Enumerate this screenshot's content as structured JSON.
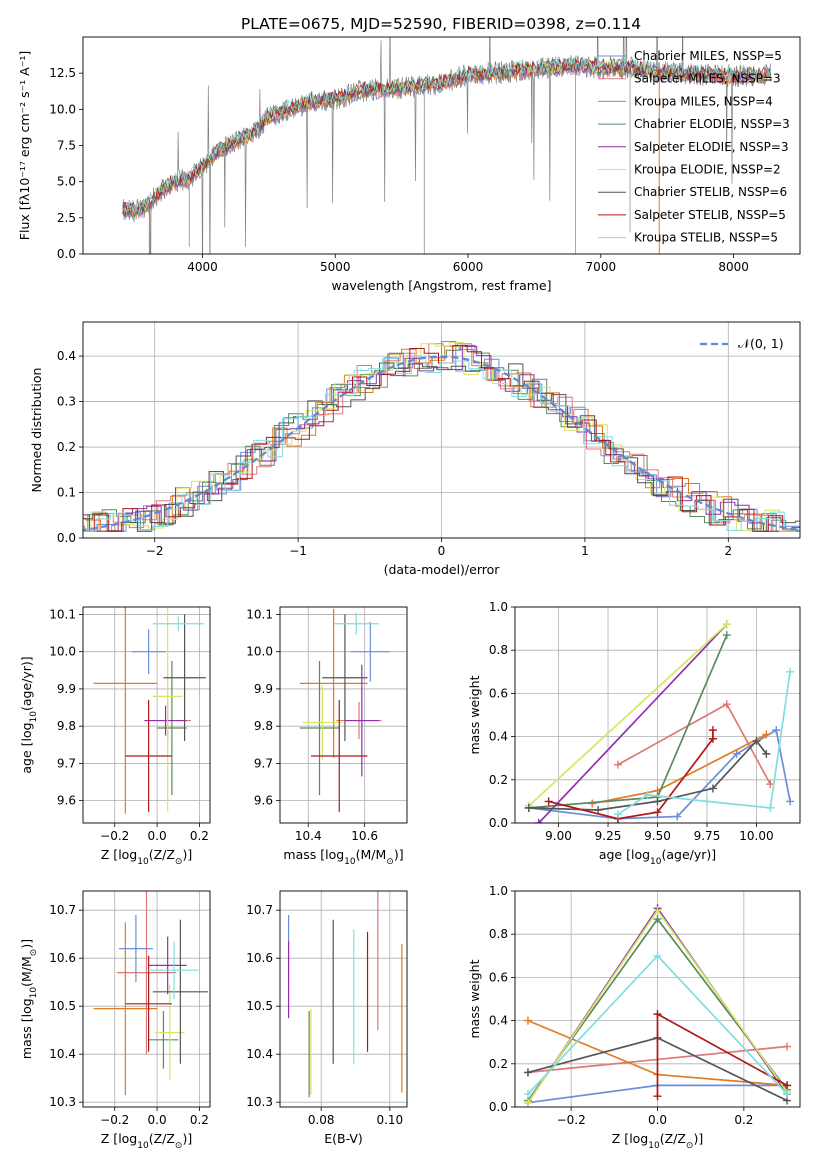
{
  "figure": {
    "title": "PLATE=0675, MJD=52590, FIBERID=0398, z=0.114"
  },
  "colors": {
    "Chabrier MILES": "#6a8fd8",
    "Salpeter MILES": "#e07878",
    "Kroupa MILES": "#e07b20",
    "Chabrier ELODIE": "#5a8a62",
    "Salpeter ELODIE": "#9030b0",
    "Kroupa ELODIE": "#d4e660",
    "Chabrier STELIB": "#555555",
    "Salpeter STELIB": "#b01818",
    "Kroupa STELIB": "#80dede"
  },
  "chart_data": [
    {
      "id": "spectrum",
      "type": "line",
      "title": "PLATE=0675, MJD=52590, FIBERID=0398, z=0.114",
      "xlabel": "wavelength [Angstrom, rest frame]",
      "ylabel": "Flux [fλ10⁻¹⁷ erg cm⁻² s⁻¹ A⁻¹]",
      "xlim": [
        3100,
        8500
      ],
      "ylim": [
        0,
        15
      ],
      "xticks": [
        4000,
        5000,
        6000,
        7000,
        8000
      ],
      "yticks": [
        0.0,
        2.5,
        5.0,
        7.5,
        10.0,
        12.5
      ],
      "legend_position": "right",
      "legend": [
        "Chabrier MILES, NSSP=5",
        "Salpeter MILES, NSSP=3",
        "Kroupa MILES, NSSP=4",
        "Chabrier ELODIE, NSSP=3",
        "Salpeter ELODIE, NSSP=3",
        "Kroupa ELODIE, NSSP=2",
        "Chabrier STELIB, NSSP=6",
        "Salpeter STELIB, NSSP=5",
        "Kroupa STELIB, NSSP=5"
      ],
      "data_x": [
        3400,
        3500,
        3600,
        3700,
        3800,
        3900,
        4000,
        4100,
        4200,
        4300,
        4400,
        4500,
        4600,
        4700,
        4800,
        4900,
        5000,
        5200,
        5400,
        5600,
        5800,
        6000,
        6200,
        6400,
        6600,
        6800,
        7000,
        7200,
        7400,
        7600,
        7800,
        8000,
        8200,
        8300
      ],
      "data_y": [
        3.0,
        3.0,
        3.5,
        4.5,
        5.0,
        5.2,
        6.0,
        7.0,
        7.5,
        8.0,
        8.5,
        9.5,
        9.8,
        10.2,
        10.5,
        10.6,
        10.7,
        11.3,
        11.4,
        11.6,
        11.8,
        12.4,
        12.5,
        12.7,
        12.8,
        13.0,
        12.9,
        12.9,
        12.6,
        12.5,
        12.4,
        12.3,
        12.3,
        12.5
      ]
    },
    {
      "id": "residuals",
      "type": "bar",
      "xlabel": "(data-model)/error",
      "ylabel": "Normed distribution",
      "xlim": [
        -2.5,
        2.5
      ],
      "ylim": [
        0,
        0.475
      ],
      "xticks": [
        -2,
        -1,
        0,
        1,
        2
      ],
      "yticks": [
        0.0,
        0.1,
        0.2,
        0.3,
        0.4
      ],
      "grid": true,
      "legend_position": "top-right",
      "legend": [
        "𝒩(0, 1)"
      ],
      "note": "histograms of 9 fits (step lines) with the standard normal pdf (dashed)"
    },
    {
      "id": "z_age",
      "type": "scatter",
      "xlabel": "Z [log10(Z/Z⊙)]",
      "ylabel": "age  [log10(age/yr)]",
      "xlim": [
        -0.35,
        0.25
      ],
      "ylim": [
        9.54,
        10.12
      ],
      "xticks": [
        -0.2,
        0.0,
        0.2
      ],
      "yticks": [
        9.6,
        9.7,
        9.8,
        9.9,
        10.0,
        10.1
      ],
      "grid": true,
      "points": [
        {
          "series": "Chabrier MILES",
          "x": -0.04,
          "xerr": 0.08,
          "y": 10.0,
          "yerr": 0.06
        },
        {
          "series": "Salpeter MILES",
          "x": 0.05,
          "xerr": 0.11,
          "y": 9.815,
          "yerr": 0.05
        },
        {
          "series": "Kroupa MILES",
          "x": -0.15,
          "xerr": 0.15,
          "y": 9.915,
          "yerr": 0.35
        },
        {
          "series": "Chabrier ELODIE",
          "x": 0.07,
          "xerr": 0.07,
          "y": 9.795,
          "yerr": 0.18
        },
        {
          "series": "Salpeter ELODIE",
          "x": 0.04,
          "xerr": 0.1,
          "y": 9.815,
          "yerr": 0.04
        },
        {
          "series": "Kroupa ELODIE",
          "x": 0.05,
          "xerr": 0.07,
          "y": 9.88,
          "yerr": 0.31
        },
        {
          "series": "Chabrier STELIB",
          "x": 0.13,
          "xerr": 0.1,
          "y": 9.93,
          "yerr": 0.17
        },
        {
          "series": "Salpeter STELIB",
          "x": -0.04,
          "xerr": 0.11,
          "y": 9.72,
          "yerr": 0.15
        },
        {
          "series": "Kroupa STELIB",
          "x": 0.1,
          "xerr": 0.12,
          "y": 10.075,
          "yerr": 0.02
        }
      ]
    },
    {
      "id": "mass_age",
      "type": "scatter",
      "xlabel": "mass [log10(M/M⊙)]",
      "ylabel": "",
      "xlim": [
        10.3,
        10.75
      ],
      "ylim": [
        9.54,
        10.12
      ],
      "xticks": [
        10.4,
        10.6
      ],
      "yticks": [
        9.6,
        9.7,
        9.8,
        9.9,
        10.0,
        10.1
      ],
      "grid": true,
      "points": [
        {
          "series": "Chabrier MILES",
          "x": 10.62,
          "xerr": 0.07,
          "y": 10.0,
          "yerr": 0.08
        },
        {
          "series": "Salpeter MILES",
          "x": 10.58,
          "xerr": 0.08,
          "y": 9.815,
          "yerr": 0.05
        },
        {
          "series": "Kroupa MILES",
          "x": 10.49,
          "xerr": 0.12,
          "y": 9.915,
          "yerr": 0.2
        },
        {
          "series": "Chabrier ELODIE",
          "x": 10.44,
          "xerr": 0.07,
          "y": 9.795,
          "yerr": 0.18
        },
        {
          "series": "Salpeter ELODIE",
          "x": 10.59,
          "xerr": 0.06,
          "y": 9.815,
          "yerr": 0.15
        },
        {
          "series": "Kroupa ELODIE",
          "x": 10.45,
          "xerr": 0.07,
          "y": 9.81,
          "yerr": 0.1
        },
        {
          "series": "Chabrier STELIB",
          "x": 10.53,
          "xerr": 0.08,
          "y": 9.93,
          "yerr": 0.17
        },
        {
          "series": "Salpeter STELIB",
          "x": 10.51,
          "xerr": 0.1,
          "y": 9.72,
          "yerr": 0.15
        },
        {
          "series": "Kroupa STELIB",
          "x": 10.57,
          "xerr": 0.08,
          "y": 10.075,
          "yerr": 0.03
        }
      ]
    },
    {
      "id": "age_massweight",
      "type": "line",
      "xlabel": "age  [log10(age/yr)]",
      "ylabel": "mass weight",
      "xlim": [
        8.78,
        10.22
      ],
      "ylim": [
        0,
        1.0
      ],
      "xticks": [
        9.0,
        9.25,
        9.5,
        9.75,
        10.0
      ],
      "yticks": [
        0.0,
        0.2,
        0.4,
        0.6,
        0.8,
        1.0
      ],
      "grid": true,
      "series": [
        {
          "name": "Chabrier MILES",
          "x": [
            8.85,
            9.3,
            9.6,
            9.9,
            10.1,
            10.17
          ],
          "y": [
            0.07,
            0.02,
            0.03,
            0.32,
            0.43,
            0.1
          ]
        },
        {
          "name": "Salpeter MILES",
          "x": [
            9.3,
            9.85,
            10.07
          ],
          "y": [
            0.27,
            0.55,
            0.18
          ]
        },
        {
          "name": "Kroupa MILES",
          "x": [
            9.17,
            9.5,
            10.05
          ],
          "y": [
            0.09,
            0.15,
            0.41
          ]
        },
        {
          "name": "Chabrier ELODIE",
          "x": [
            8.85,
            9.5,
            9.85
          ],
          "y": [
            0.07,
            0.12,
            0.87
          ]
        },
        {
          "name": "Salpeter ELODIE",
          "x": [
            8.9,
            9.85
          ],
          "y": [
            0.0,
            0.92
          ]
        },
        {
          "name": "Kroupa ELODIE",
          "x": [
            8.85,
            9.85
          ],
          "y": [
            0.08,
            0.92
          ]
        },
        {
          "name": "Chabrier STELIB",
          "x": [
            8.85,
            9.2,
            9.5,
            9.78,
            10.0,
            10.05
          ],
          "y": [
            0.07,
            0.06,
            0.1,
            0.16,
            0.38,
            0.32
          ]
        },
        {
          "name": "Salpeter STELIB",
          "x": [
            8.95,
            9.3,
            9.5,
            9.78,
            9.78
          ],
          "y": [
            0.1,
            0.02,
            0.05,
            0.39,
            0.43
          ]
        },
        {
          "name": "Kroupa STELIB",
          "x": [
            9.3,
            9.45,
            9.75,
            10.07,
            10.17
          ],
          "y": [
            0.04,
            0.13,
            0.1,
            0.07,
            0.7
          ]
        }
      ]
    },
    {
      "id": "z_mass",
      "type": "scatter",
      "xlabel": "Z [log10(Z/Z⊙)]",
      "ylabel": "mass [log10(M/M⊙)]",
      "xlim": [
        -0.35,
        0.25
      ],
      "ylim": [
        10.29,
        10.74
      ],
      "xticks": [
        -0.2,
        0.0,
        0.2
      ],
      "yticks": [
        10.3,
        10.4,
        10.5,
        10.6,
        10.7
      ],
      "grid": true,
      "points": [
        {
          "series": "Chabrier MILES",
          "x": -0.1,
          "xerr": 0.08,
          "y": 10.62,
          "yerr": 0.07
        },
        {
          "series": "Salpeter MILES",
          "x": -0.05,
          "xerr": 0.14,
          "y": 10.57,
          "yerr": 0.17
        },
        {
          "series": "Kroupa MILES",
          "x": -0.15,
          "xerr": 0.15,
          "y": 10.495,
          "yerr": 0.18
        },
        {
          "series": "Chabrier ELODIE",
          "x": 0.03,
          "xerr": 0.07,
          "y": 10.43,
          "yerr": 0.06
        },
        {
          "series": "Salpeter ELODIE",
          "x": 0.05,
          "xerr": 0.09,
          "y": 10.585,
          "yerr": 0.06
        },
        {
          "series": "Kroupa ELODIE",
          "x": 0.06,
          "xerr": 0.07,
          "y": 10.445,
          "yerr": 0.1
        },
        {
          "series": "Chabrier STELIB",
          "x": 0.11,
          "xerr": 0.13,
          "y": 10.53,
          "yerr": 0.15
        },
        {
          "series": "Salpeter STELIB",
          "x": -0.04,
          "xerr": 0.11,
          "y": 10.505,
          "yerr": 0.1
        },
        {
          "series": "Kroupa STELIB",
          "x": 0.08,
          "xerr": 0.12,
          "y": 10.575,
          "yerr": 0.06
        }
      ]
    },
    {
      "id": "ebv_mass",
      "type": "scatter",
      "xlabel": "E(B-V)",
      "ylabel": "",
      "xlim": [
        0.068,
        0.105
      ],
      "ylim": [
        10.29,
        10.74
      ],
      "xticks": [
        0.08,
        0.1
      ],
      "yticks": [
        10.3,
        10.4,
        10.5,
        10.6,
        10.7
      ],
      "grid": true,
      "points": [
        {
          "series": "Chabrier MILES",
          "x": 0.0705,
          "y": 10.62,
          "yerr": 0.07
        },
        {
          "series": "Salpeter MILES",
          "x": 0.0965,
          "y": 10.595,
          "yerr": 0.145
        },
        {
          "series": "Kroupa MILES",
          "x": 0.1035,
          "y": 10.475,
          "yerr": 0.155
        },
        {
          "series": "Chabrier ELODIE",
          "x": 0.0765,
          "y": 10.4,
          "yerr": 0.09
        },
        {
          "series": "Salpeter ELODIE",
          "x": 0.0705,
          "y": 10.555,
          "yerr": 0.08
        },
        {
          "series": "Kroupa ELODIE",
          "x": 0.077,
          "y": 10.405,
          "yerr": 0.09
        },
        {
          "series": "Chabrier STELIB",
          "x": 0.0835,
          "y": 10.53,
          "yerr": 0.15
        },
        {
          "series": "Salpeter STELIB",
          "x": 0.0935,
          "y": 10.53,
          "yerr": 0.125
        },
        {
          "series": "Kroupa STELIB",
          "x": 0.0895,
          "y": 10.52,
          "yerr": 0.14
        }
      ]
    },
    {
      "id": "z_massweight",
      "type": "line",
      "xlabel": "Z [log10(Z/Z⊙)]",
      "ylabel": "mass weight",
      "xlim": [
        -0.33,
        0.33
      ],
      "ylim": [
        0,
        1.0
      ],
      "xticks": [
        -0.2,
        0.0,
        0.2
      ],
      "yticks": [
        0.0,
        0.2,
        0.4,
        0.6,
        0.8,
        1.0
      ],
      "grid": true,
      "series": [
        {
          "name": "Chabrier MILES",
          "x": [
            -0.3,
            0.0,
            0.3
          ],
          "y": [
            0.02,
            0.1,
            0.1
          ]
        },
        {
          "name": "Salpeter MILES",
          "x": [
            -0.3,
            0.3
          ],
          "y": [
            0.16,
            0.28
          ]
        },
        {
          "name": "Kroupa MILES",
          "x": [
            -0.3,
            0.0,
            0.3
          ],
          "y": [
            0.4,
            0.15,
            0.1
          ]
        },
        {
          "name": "Chabrier ELODIE",
          "x": [
            -0.3,
            0.0,
            0.3
          ],
          "y": [
            0.03,
            0.87,
            0.08
          ]
        },
        {
          "name": "Salpeter ELODIE",
          "x": [
            -0.3,
            0.0,
            0.3
          ],
          "y": [
            0.02,
            0.92,
            0.06
          ]
        },
        {
          "name": "Kroupa ELODIE",
          "x": [
            -0.3,
            0.0,
            0.3
          ],
          "y": [
            0.02,
            0.91,
            0.07
          ]
        },
        {
          "name": "Chabrier STELIB",
          "x": [
            -0.3,
            0.0,
            0.3
          ],
          "y": [
            0.16,
            0.32,
            0.03
          ]
        },
        {
          "name": "Salpeter STELIB",
          "x": [
            0.0,
            0.0,
            0.3
          ],
          "y": [
            0.05,
            0.43,
            0.1
          ]
        },
        {
          "name": "Kroupa STELIB",
          "x": [
            -0.3,
            0.0,
            0.3
          ],
          "y": [
            0.06,
            0.7,
            0.06
          ]
        }
      ]
    }
  ]
}
